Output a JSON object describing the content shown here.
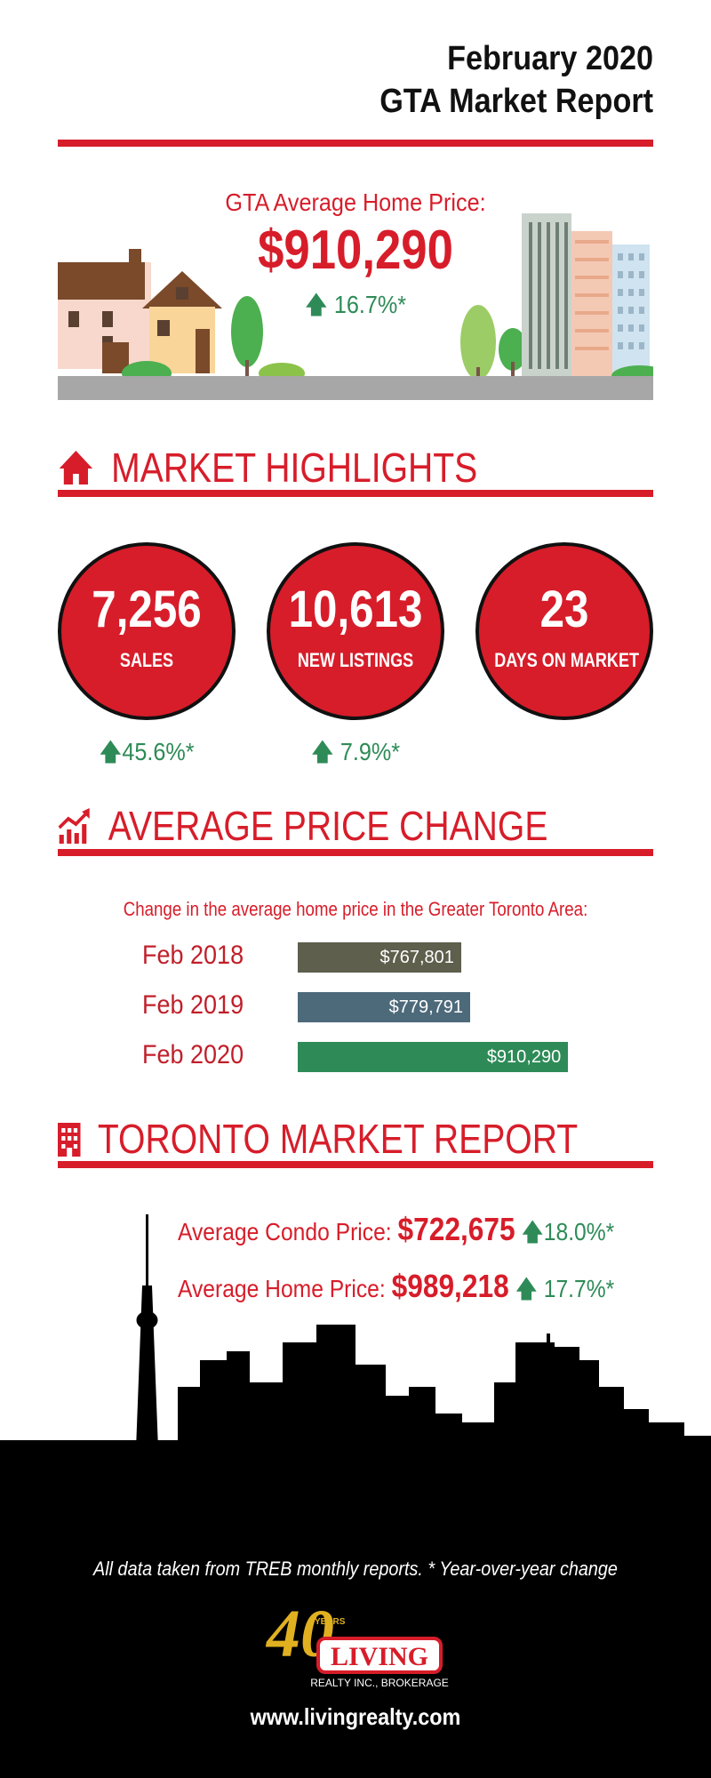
{
  "header": {
    "line1": "February 2020",
    "line2": "GTA Market Report"
  },
  "hero": {
    "label": "GTA Average Home Price:",
    "price": "$910,290",
    "change": "16.7%*"
  },
  "highlights": {
    "heading": "MARKET HIGHLIGHTS",
    "stats": [
      {
        "value": "7,256",
        "label": "SALES",
        "change": "45.6%*"
      },
      {
        "value": "10,613",
        "label": "NEW LISTINGS",
        "change": "7.9%*"
      },
      {
        "value": "23",
        "label": "DAYS ON MARKET"
      }
    ]
  },
  "price_change": {
    "heading": "AVERAGE PRICE CHANGE",
    "caption": "Change in the average home price in the Greater Toronto Area:"
  },
  "chart_data": {
    "type": "bar",
    "categories": [
      "Feb 2018",
      "Feb 2019",
      "Feb 2020"
    ],
    "values": [
      767801,
      779791,
      910290
    ],
    "value_labels": [
      "$767,801",
      "$779,791",
      "$910,290"
    ],
    "colors": [
      "#5e5f4c",
      "#4d6a7a",
      "#2e8b57"
    ]
  },
  "toronto": {
    "heading": "TORONTO MARKET REPORT",
    "condo": {
      "label": "Average Condo Price:",
      "price": "$722,675",
      "change": "18.0%*"
    },
    "home": {
      "label": "Average Home Price:",
      "price": "$989,218",
      "change": "17.7%*"
    }
  },
  "footer": {
    "note": "All data taken from TREB monthly reports.  * Year-over-year change",
    "logo_years": "40",
    "logo_years_word": "YEARS",
    "logo_name": "LIVING",
    "logo_sub": "REALTY INC., BROKERAGE",
    "website": "www.livingrealty.com"
  },
  "colors": {
    "accent": "#d71d2a",
    "up": "#2e8b57",
    "dark": "#111111"
  }
}
